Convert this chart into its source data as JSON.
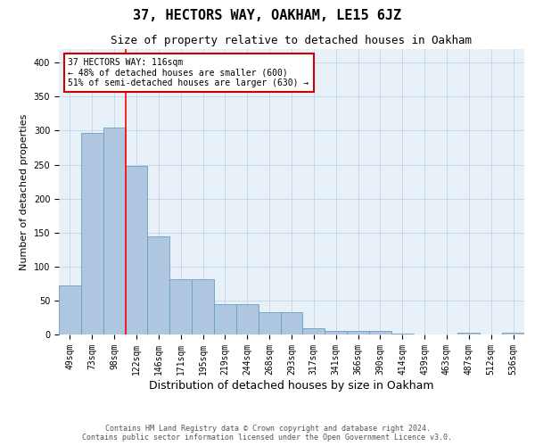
{
  "title": "37, HECTORS WAY, OAKHAM, LE15 6JZ",
  "subtitle": "Size of property relative to detached houses in Oakham",
  "xlabel": "Distribution of detached houses by size in Oakham",
  "ylabel": "Number of detached properties",
  "bar_labels": [
    "49sqm",
    "73sqm",
    "98sqm",
    "122sqm",
    "146sqm",
    "171sqm",
    "195sqm",
    "219sqm",
    "244sqm",
    "268sqm",
    "293sqm",
    "317sqm",
    "341sqm",
    "366sqm",
    "390sqm",
    "414sqm",
    "439sqm",
    "463sqm",
    "487sqm",
    "512sqm",
    "536sqm"
  ],
  "bar_values": [
    72,
    297,
    304,
    248,
    144,
    82,
    82,
    45,
    45,
    33,
    33,
    9,
    5,
    5,
    5,
    1,
    0,
    0,
    3,
    0,
    3
  ],
  "bar_color": "#aec6df",
  "bar_edgecolor": "#6a9fc0",
  "bar_linewidth": 0.6,
  "grid_color": "#c5d8ea",
  "bg_color": "#e8f0f8",
  "red_line_x": 2.5,
  "annotation_text": "37 HECTORS WAY: 116sqm\n← 48% of detached houses are smaller (600)\n51% of semi-detached houses are larger (630) →",
  "annotation_box_color": "#ffffff",
  "annotation_box_edgecolor": "#cc0000",
  "footer_line1": "Contains HM Land Registry data © Crown copyright and database right 2024.",
  "footer_line2": "Contains public sector information licensed under the Open Government Licence v3.0.",
  "ylim": [
    0,
    420
  ],
  "yticks": [
    0,
    50,
    100,
    150,
    200,
    250,
    300,
    350,
    400
  ],
  "title_fontsize": 11,
  "subtitle_fontsize": 9,
  "xlabel_fontsize": 9,
  "ylabel_fontsize": 8,
  "tick_fontsize": 7,
  "annotation_fontsize": 7,
  "footer_fontsize": 6
}
